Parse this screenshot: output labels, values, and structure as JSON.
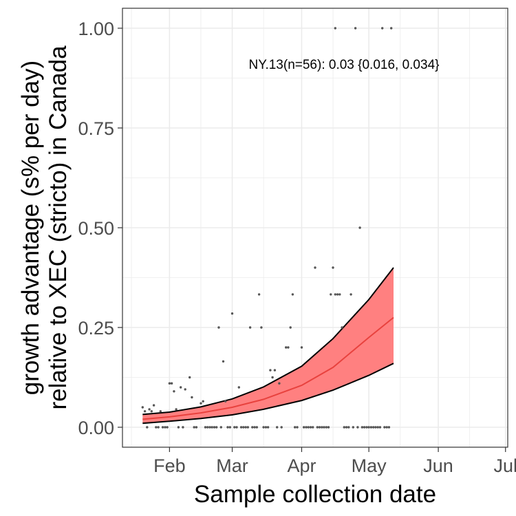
{
  "chart_data": {
    "type": "scatter",
    "title": "",
    "xlabel": "Sample collection date",
    "ylabel_lines": [
      "growth advantage (s% per day)",
      "relative to XEC (stricto) in Canada"
    ],
    "annotation": "NY.13(n=56): 0.03 {0.016, 0.034}",
    "x_axis": {
      "type": "date",
      "range": [
        "2025-01-11",
        "2025-07-02"
      ],
      "ticks": [
        {
          "date": "2025-02-01",
          "label": "Feb"
        },
        {
          "date": "2025-03-01",
          "label": "Mar"
        },
        {
          "date": "2025-04-01",
          "label": "Apr"
        },
        {
          "date": "2025-05-01",
          "label": "May"
        },
        {
          "date": "2025-06-01",
          "label": "Jun"
        },
        {
          "date": "2025-07-01",
          "label": "Jul"
        }
      ]
    },
    "y_axis": {
      "range": [
        -0.05,
        1.05
      ],
      "ticks": [
        {
          "value": 0,
          "label": "0.00"
        },
        {
          "value": 0.25,
          "label": "0.25"
        },
        {
          "value": 0.5,
          "label": "0.50"
        },
        {
          "value": 0.75,
          "label": "0.75"
        },
        {
          "value": 1,
          "label": "1.00"
        }
      ]
    },
    "grid": true,
    "colors": {
      "fit_line": "#e8423e",
      "ci_fill": "#ff8080",
      "ci_border": "#000000",
      "points": "#555555",
      "panel_border": "#333333",
      "grid": "#ebebeb"
    },
    "fit": {
      "x": [
        "2025-01-20",
        "2025-02-01",
        "2025-02-15",
        "2025-03-01",
        "2025-03-15",
        "2025-04-01",
        "2025-04-15",
        "2025-05-01",
        "2025-05-12"
      ],
      "y": [
        0.02,
        0.026,
        0.036,
        0.05,
        0.07,
        0.105,
        0.15,
        0.225,
        0.275
      ],
      "lower": [
        0.01,
        0.015,
        0.022,
        0.031,
        0.045,
        0.067,
        0.093,
        0.13,
        0.16
      ],
      "upper": [
        0.032,
        0.038,
        0.051,
        0.071,
        0.101,
        0.153,
        0.222,
        0.32,
        0.4
      ]
    },
    "points": [
      {
        "x": "2025-01-20",
        "y": 0.05
      },
      {
        "x": "2025-01-21",
        "y": 0.04
      },
      {
        "x": "2025-01-22",
        "y": 0
      },
      {
        "x": "2025-01-23",
        "y": 0.045
      },
      {
        "x": "2025-01-24",
        "y": 0.04
      },
      {
        "x": "2025-01-25",
        "y": 0.055
      },
      {
        "x": "2025-01-26",
        "y": 0
      },
      {
        "x": "2025-01-27",
        "y": 0
      },
      {
        "x": "2025-01-28",
        "y": 0.04
      },
      {
        "x": "2025-01-29",
        "y": 0
      },
      {
        "x": "2025-01-30",
        "y": 0
      },
      {
        "x": "2025-01-31",
        "y": 0
      },
      {
        "x": "2025-02-01",
        "y": 0.11
      },
      {
        "x": "2025-02-02",
        "y": 0.11
      },
      {
        "x": "2025-02-03",
        "y": 0.09
      },
      {
        "x": "2025-02-04",
        "y": 0.045
      },
      {
        "x": "2025-02-05",
        "y": 0
      },
      {
        "x": "2025-02-06",
        "y": 0.1
      },
      {
        "x": "2025-02-07",
        "y": 0
      },
      {
        "x": "2025-02-08",
        "y": 0.095
      },
      {
        "x": "2025-02-10",
        "y": 0.125
      },
      {
        "x": "2025-02-11",
        "y": 0.075
      },
      {
        "x": "2025-02-12",
        "y": 0
      },
      {
        "x": "2025-02-13",
        "y": 0
      },
      {
        "x": "2025-02-15",
        "y": 0.06
      },
      {
        "x": "2025-02-16",
        "y": 0.065
      },
      {
        "x": "2025-02-17",
        "y": 0
      },
      {
        "x": "2025-02-18",
        "y": 0
      },
      {
        "x": "2025-02-19",
        "y": 0
      },
      {
        "x": "2025-02-20",
        "y": 0
      },
      {
        "x": "2025-02-21",
        "y": 0
      },
      {
        "x": "2025-02-22",
        "y": 0
      },
      {
        "x": "2025-02-23",
        "y": 0.25
      },
      {
        "x": "2025-02-24",
        "y": 0
      },
      {
        "x": "2025-02-25",
        "y": 0.165
      },
      {
        "x": "2025-02-26",
        "y": 0.065
      },
      {
        "x": "2025-02-27",
        "y": 0
      },
      {
        "x": "2025-02-28",
        "y": 0
      },
      {
        "x": "2025-03-01",
        "y": 0.285
      },
      {
        "x": "2025-03-02",
        "y": 0
      },
      {
        "x": "2025-03-03",
        "y": 0
      },
      {
        "x": "2025-03-04",
        "y": 0.1
      },
      {
        "x": "2025-03-05",
        "y": 0
      },
      {
        "x": "2025-03-06",
        "y": 0
      },
      {
        "x": "2025-03-07",
        "y": 0
      },
      {
        "x": "2025-03-08",
        "y": 0
      },
      {
        "x": "2025-03-09",
        "y": 0.25
      },
      {
        "x": "2025-03-10",
        "y": 0
      },
      {
        "x": "2025-03-11",
        "y": 0
      },
      {
        "x": "2025-03-12",
        "y": 0
      },
      {
        "x": "2025-03-13",
        "y": 0.333
      },
      {
        "x": "2025-03-14",
        "y": 0.25
      },
      {
        "x": "2025-03-15",
        "y": 0
      },
      {
        "x": "2025-03-16",
        "y": 0
      },
      {
        "x": "2025-03-17",
        "y": 0
      },
      {
        "x": "2025-03-18",
        "y": 0.143
      },
      {
        "x": "2025-03-19",
        "y": 0.125
      },
      {
        "x": "2025-03-20",
        "y": 0.143
      },
      {
        "x": "2025-03-21",
        "y": 0
      },
      {
        "x": "2025-03-22",
        "y": 0.11
      },
      {
        "x": "2025-03-23",
        "y": 0
      },
      {
        "x": "2025-03-25",
        "y": 0.2
      },
      {
        "x": "2025-03-26",
        "y": 0.2
      },
      {
        "x": "2025-03-27",
        "y": 0.25
      },
      {
        "x": "2025-03-28",
        "y": 0.333
      },
      {
        "x": "2025-03-29",
        "y": 0
      },
      {
        "x": "2025-03-30",
        "y": 0
      },
      {
        "x": "2025-04-01",
        "y": 0.2
      },
      {
        "x": "2025-04-02",
        "y": 0
      },
      {
        "x": "2025-04-03",
        "y": 0
      },
      {
        "x": "2025-04-04",
        "y": 0
      },
      {
        "x": "2025-04-05",
        "y": 0
      },
      {
        "x": "2025-04-06",
        "y": 0
      },
      {
        "x": "2025-04-07",
        "y": 0.4
      },
      {
        "x": "2025-04-08",
        "y": 0
      },
      {
        "x": "2025-04-09",
        "y": 0
      },
      {
        "x": "2025-04-10",
        "y": 0
      },
      {
        "x": "2025-04-11",
        "y": 0
      },
      {
        "x": "2025-04-12",
        "y": 0
      },
      {
        "x": "2025-04-13",
        "y": 0
      },
      {
        "x": "2025-04-14",
        "y": 0.333
      },
      {
        "x": "2025-04-15",
        "y": 0.4
      },
      {
        "x": "2025-04-16",
        "y": 0.333
      },
      {
        "x": "2025-04-16",
        "y": 1.0
      },
      {
        "x": "2025-04-17",
        "y": 0.333
      },
      {
        "x": "2025-04-18",
        "y": 0.333
      },
      {
        "x": "2025-04-19",
        "y": 0.25
      },
      {
        "x": "2025-04-20",
        "y": 0
      },
      {
        "x": "2025-04-21",
        "y": 0
      },
      {
        "x": "2025-04-22",
        "y": 0
      },
      {
        "x": "2025-04-23",
        "y": 0.333
      },
      {
        "x": "2025-04-24",
        "y": 0
      },
      {
        "x": "2025-04-25",
        "y": 1.0
      },
      {
        "x": "2025-04-26",
        "y": 0
      },
      {
        "x": "2025-04-27",
        "y": 0.5
      },
      {
        "x": "2025-04-28",
        "y": 0
      },
      {
        "x": "2025-04-29",
        "y": 0
      },
      {
        "x": "2025-04-30",
        "y": 0
      },
      {
        "x": "2025-05-01",
        "y": 0
      },
      {
        "x": "2025-05-02",
        "y": 0
      },
      {
        "x": "2025-05-03",
        "y": 0
      },
      {
        "x": "2025-05-04",
        "y": 0
      },
      {
        "x": "2025-05-05",
        "y": 0
      },
      {
        "x": "2025-05-06",
        "y": 0
      },
      {
        "x": "2025-05-07",
        "y": 1.0
      },
      {
        "x": "2025-05-08",
        "y": 0
      },
      {
        "x": "2025-05-09",
        "y": 0
      },
      {
        "x": "2025-05-10",
        "y": 0
      },
      {
        "x": "2025-05-11",
        "y": 1.0
      }
    ]
  }
}
